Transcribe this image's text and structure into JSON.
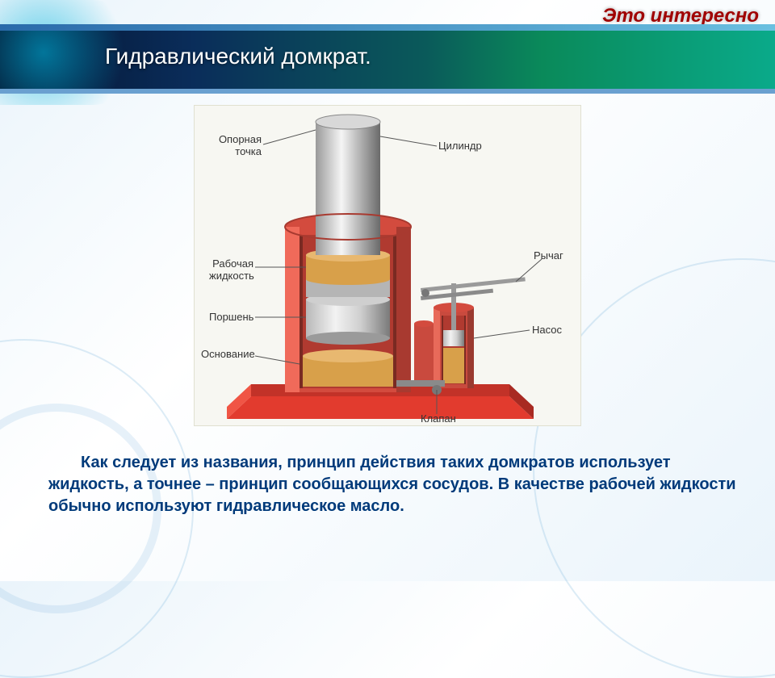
{
  "header": {
    "corner_tag": "Это интересно",
    "title": "Гидравлический домкрат."
  },
  "diagram": {
    "type": "labeled-cutaway",
    "background_color": "#f7f7f2",
    "base_color": "#e23b2e",
    "cylinder_outer_color": "#d34b3e",
    "cylinder_inner_wall": "#b03a30",
    "piston_metal_light": "#e8e8e8",
    "piston_metal_dark": "#8a8a8a",
    "fluid_color": "#d8a04a",
    "pump_body_color": "#c94a3e",
    "lever_color": "#9a9a9a",
    "labels": {
      "support_point": "Опорная\nточка",
      "cylinder": "Цилиндр",
      "working_fluid": "Рабочая\nжидкость",
      "piston": "Поршень",
      "base": "Основание",
      "lever": "Рычаг",
      "pump": "Насос",
      "valve": "Клапан"
    }
  },
  "body_text": "Как следует из названия, принцип действия таких домкратов использует жидкость, а точнее – принцип сообщающихся сосудов. В качестве рабочей жидкости обычно используют гидравлическое масло.",
  "palette": {
    "title_text": "#ffffff",
    "body_text": "#003a7a",
    "tag_text": "#a00000",
    "band_start": "#04122e",
    "band_end": "#0aaa8a"
  }
}
